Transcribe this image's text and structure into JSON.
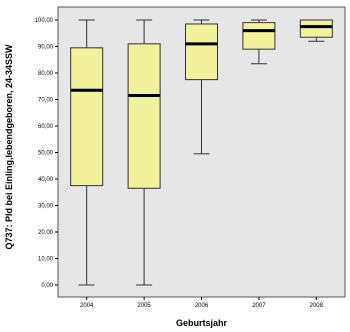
{
  "chart_data": {
    "type": "boxplot",
    "xlabel": "Geburtsjahr",
    "ylabel": "Q737: Pld bei Einling,lebendgeboren, 24-34SSW",
    "ylim": [
      0,
      100
    ],
    "yticks": [
      "0,00",
      "10,00",
      "20,00",
      "30,00",
      "40,00",
      "50,00",
      "60,00",
      "70,00",
      "80,00",
      "90,00",
      "100,00"
    ],
    "categories": [
      "2004",
      "2005",
      "2006",
      "2007",
      "2008"
    ],
    "boxes": [
      {
        "min": 0,
        "q1": 37.5,
        "median": 73.5,
        "q3": 89.5,
        "max": 100
      },
      {
        "min": 0,
        "q1": 36.5,
        "median": 71.5,
        "q3": 91,
        "max": 100
      },
      {
        "min": 49.5,
        "q1": 77.5,
        "median": 91,
        "q3": 98.5,
        "max": 100
      },
      {
        "min": 83.5,
        "q1": 89,
        "median": 96,
        "q3": 99,
        "max": 100
      },
      {
        "min": 92,
        "q1": 93.5,
        "median": 97.5,
        "q3": 100,
        "max": 100
      }
    ],
    "colors": {
      "plot_bg": "#e6e6e6",
      "box_fill": "#f2f29c",
      "median": "#000000"
    }
  }
}
